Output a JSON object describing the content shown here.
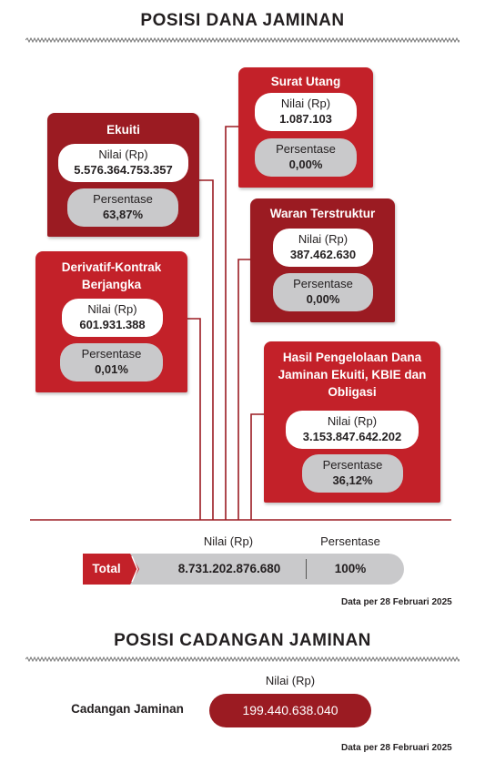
{
  "fund": {
    "heading": "POSISI DANA JAMINAN",
    "value_label": "Nilai (Rp)",
    "percent_label": "Persentase",
    "cards": [
      {
        "title": "Ekuiti",
        "value": "5.576.364.753.357",
        "percent": "63,87%"
      },
      {
        "title": "Derivatif-Kontrak Berjangka",
        "value": "601.931.388",
        "percent": "0,01%"
      },
      {
        "title": "Surat Utang",
        "value": "1.087.103",
        "percent": "0,00%"
      },
      {
        "title": "Waran Terstruktur",
        "value": "387.462.630",
        "percent": "0,00%"
      },
      {
        "title": "Hasil Pengelolaan Dana Jaminan Ekuiti, KBIE dan Obligasi",
        "value": "3.153.847.642.202",
        "percent": "36,12%"
      }
    ],
    "total": {
      "value_header": "Nilai (Rp)",
      "percent_header": "Persentase",
      "label": "Total",
      "value": "8.731.202.876.680",
      "percent": "100%"
    },
    "note": "Data per 28 Februari 2025"
  },
  "reserve": {
    "heading": "POSISI CADANGAN JAMINAN",
    "value_header": "Nilai (Rp)",
    "label": "Cadangan Jaminan",
    "value": "199.440.638.040",
    "note": "Data per 28 Februari 2025"
  },
  "colors": {
    "dark_red": "#9b1b22",
    "bright_red": "#c32129",
    "pill_gray": "#c9c9cb"
  }
}
